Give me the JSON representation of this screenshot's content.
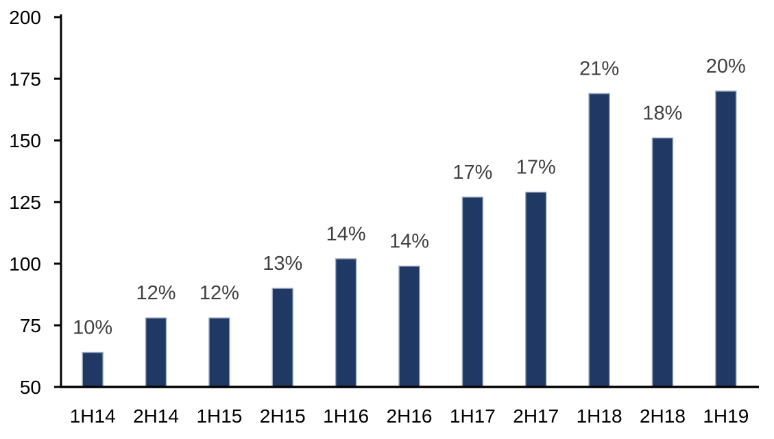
{
  "page": {
    "background_color": "#ffffff"
  },
  "chart_data": {
    "type": "bar",
    "title": "",
    "xlabel": "",
    "ylabel": "",
    "categories": [
      "1H14",
      "2H14",
      "1H15",
      "2H15",
      "1H16",
      "2H16",
      "1H17",
      "2H17",
      "1H18",
      "2H18",
      "1H19"
    ],
    "values": [
      64,
      78,
      78,
      90,
      102,
      99,
      127,
      129,
      169,
      151,
      170
    ],
    "bar_labels": [
      "10%",
      "12%",
      "12%",
      "13%",
      "14%",
      "14%",
      "17%",
      "17%",
      "21%",
      "18%",
      "20%"
    ],
    "ylim": [
      50,
      200
    ],
    "yticks": [
      50,
      75,
      100,
      125,
      150,
      175,
      200
    ],
    "grid": false,
    "legend_position": "none",
    "colors": {
      "bar_fill": "#1f3864",
      "bar_border": "#9fadc2",
      "axis_line": "#000000",
      "axis_tick_label": "#000000",
      "bar_label": "#404040"
    }
  }
}
